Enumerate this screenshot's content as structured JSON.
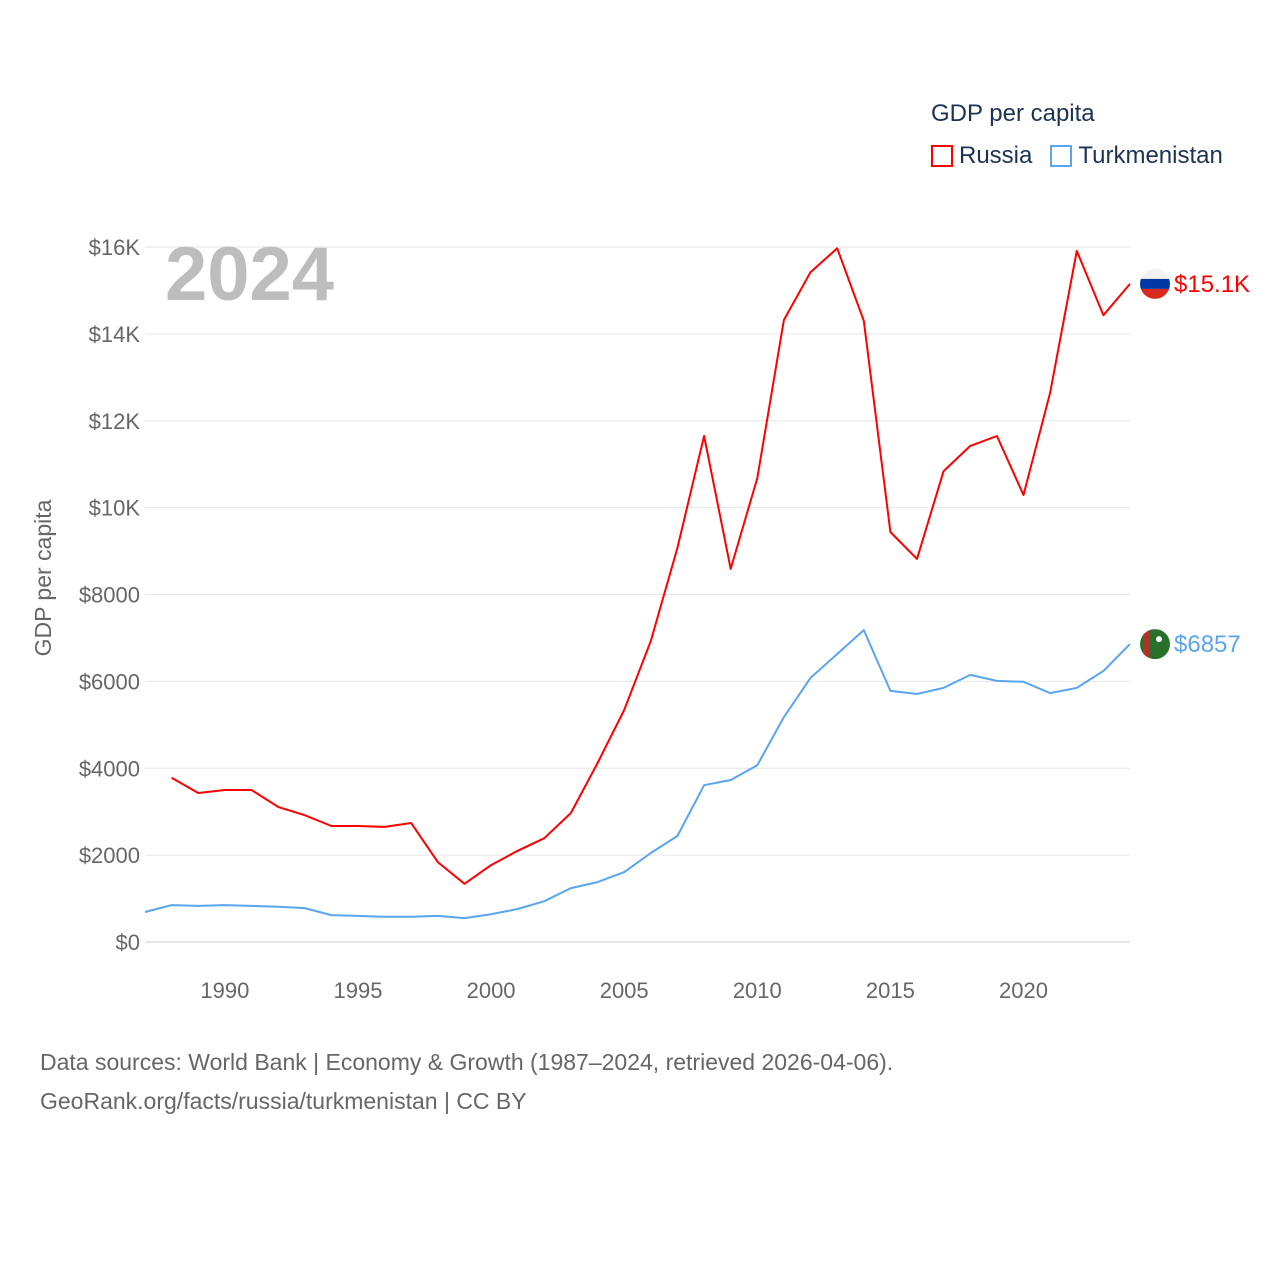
{
  "chart_data": {
    "type": "line",
    "title": "GDP per capita",
    "ylabel": "GDP per capita",
    "xlabel": "",
    "year_label": "2024",
    "xlim": [
      1987,
      2024
    ],
    "ylim": [
      0,
      16000
    ],
    "x_ticks": [
      "1990",
      "1995",
      "2000",
      "2005",
      "2010",
      "2015",
      "2020"
    ],
    "y_ticks": [
      "$0",
      "$2000",
      "$4000",
      "$6000",
      "$8000",
      "$10K",
      "$12K",
      "$14K",
      "$16K"
    ],
    "grid": true,
    "legend": {
      "title": "GDP per capita",
      "placement": "top-right"
    },
    "series": [
      {
        "name": "Russia",
        "color": "#ff0000",
        "end_label": "$15.1K",
        "start_year": 1988,
        "values": [
          3780,
          3430,
          3500,
          3500,
          3110,
          2920,
          2670,
          2670,
          2650,
          2740,
          1840,
          1340,
          1770,
          2100,
          2390,
          2970,
          4120,
          5340,
          6930,
          9070,
          11650,
          8590,
          10680,
          14320,
          15420,
          15970,
          14300,
          9440,
          8820,
          10840,
          11420,
          11650,
          10290,
          12640,
          15910,
          14430,
          15150
        ]
      },
      {
        "name": "Turkmenistan",
        "color": "#5aa5ee",
        "end_label": "$6857",
        "start_year": 1987,
        "values": [
          690,
          850,
          830,
          850,
          830,
          810,
          780,
          620,
          600,
          580,
          580,
          600,
          550,
          640,
          760,
          940,
          1240,
          1380,
          1610,
          2050,
          2440,
          3610,
          3730,
          4070,
          5180,
          6080,
          6630,
          7180,
          5780,
          5710,
          5850,
          6150,
          6010,
          5990,
          5730,
          5850,
          6240,
          6857
        ]
      }
    ]
  },
  "footer": {
    "line1": "Data sources: World Bank | Economy & Growth (1987–2024, retrieved 2026-04-06).",
    "line2": "GeoRank.org/facts/russia/turkmenistan | CC BY"
  }
}
